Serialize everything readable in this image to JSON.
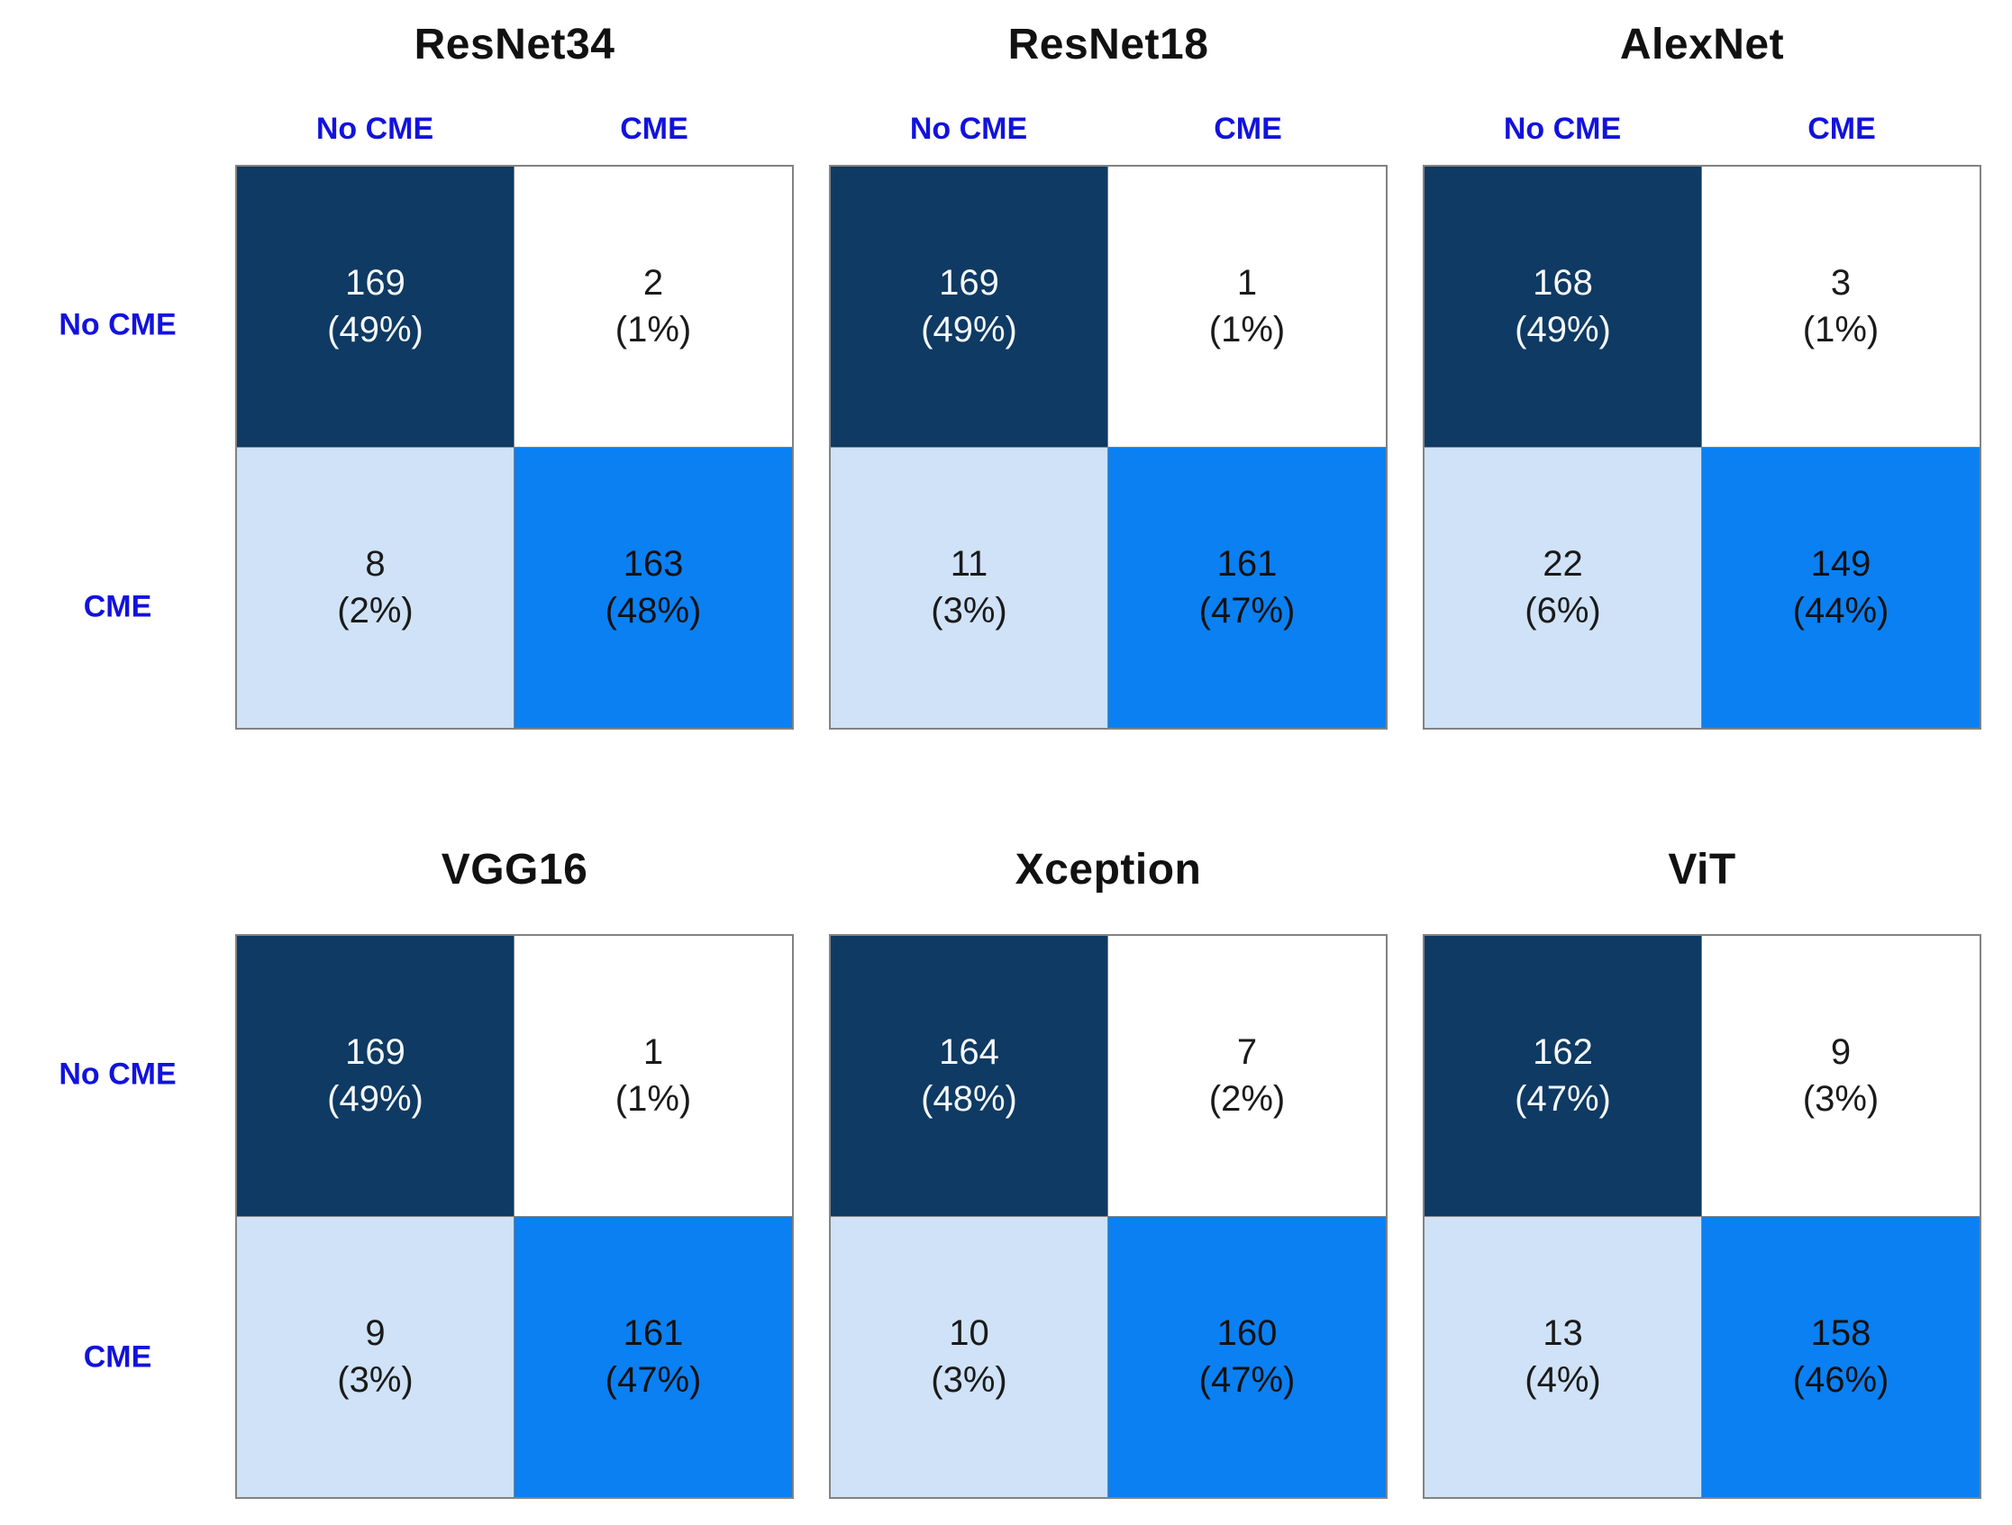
{
  "figure_title": "",
  "row_labels": [
    "No CME",
    "CME"
  ],
  "colors": {
    "true_no_cme_cell": "#0e3a63",
    "true_cme_cell": "#0a80f2",
    "false_no_cme_cell": "#cfe2f7",
    "false_cme_cell": "#ffffff",
    "axis_label_blue": "#1212dd",
    "title_black": "#111111",
    "matrix_border_gray": "#828282"
  },
  "chart_data": [
    {
      "type": "heatmap",
      "title": "ResNet34",
      "row_labels": [
        "No CME",
        "CME"
      ],
      "col_labels": [
        "No CME",
        "CME"
      ],
      "cells": [
        [
          {
            "count": "169",
            "pct": "(49%)"
          },
          {
            "count": "2",
            "pct": "(1%)"
          }
        ],
        [
          {
            "count": "8",
            "pct": "(2%)"
          },
          {
            "count": "163",
            "pct": "(48%)"
          }
        ]
      ]
    },
    {
      "type": "heatmap",
      "title": "ResNet18",
      "row_labels": [
        "No CME",
        "CME"
      ],
      "col_labels": [
        "No CME",
        "CME"
      ],
      "cells": [
        [
          {
            "count": "169",
            "pct": "(49%)"
          },
          {
            "count": "1",
            "pct": "(1%)"
          }
        ],
        [
          {
            "count": "11",
            "pct": "(3%)"
          },
          {
            "count": "161",
            "pct": "(47%)"
          }
        ]
      ]
    },
    {
      "type": "heatmap",
      "title": "AlexNet",
      "row_labels": [
        "No CME",
        "CME"
      ],
      "col_labels": [
        "No CME",
        "CME"
      ],
      "cells": [
        [
          {
            "count": "168",
            "pct": "(49%)"
          },
          {
            "count": "3",
            "pct": "(1%)"
          }
        ],
        [
          {
            "count": "22",
            "pct": "(6%)"
          },
          {
            "count": "149",
            "pct": "(44%)"
          }
        ]
      ]
    },
    {
      "type": "heatmap",
      "title": "VGG16",
      "row_labels": [
        "No CME",
        "CME"
      ],
      "col_labels": [
        "No CME",
        "CME"
      ],
      "cells": [
        [
          {
            "count": "169",
            "pct": "(49%)"
          },
          {
            "count": "1",
            "pct": "(1%)"
          }
        ],
        [
          {
            "count": "9",
            "pct": "(3%)"
          },
          {
            "count": "161",
            "pct": "(47%)"
          }
        ]
      ]
    },
    {
      "type": "heatmap",
      "title": "Xception",
      "row_labels": [
        "No CME",
        "CME"
      ],
      "col_labels": [
        "No CME",
        "CME"
      ],
      "cells": [
        [
          {
            "count": "164",
            "pct": "(48%)"
          },
          {
            "count": "7",
            "pct": "(2%)"
          }
        ],
        [
          {
            "count": "10",
            "pct": "(3%)"
          },
          {
            "count": "160",
            "pct": "(47%)"
          }
        ]
      ]
    },
    {
      "type": "heatmap",
      "title": "ViT",
      "row_labels": [
        "No CME",
        "CME"
      ],
      "col_labels": [
        "No CME",
        "CME"
      ],
      "cells": [
        [
          {
            "count": "162",
            "pct": "(47%)"
          },
          {
            "count": "9",
            "pct": "(3%)"
          }
        ],
        [
          {
            "count": "13",
            "pct": "(4%)"
          },
          {
            "count": "158",
            "pct": "(46%)"
          }
        ]
      ]
    }
  ]
}
